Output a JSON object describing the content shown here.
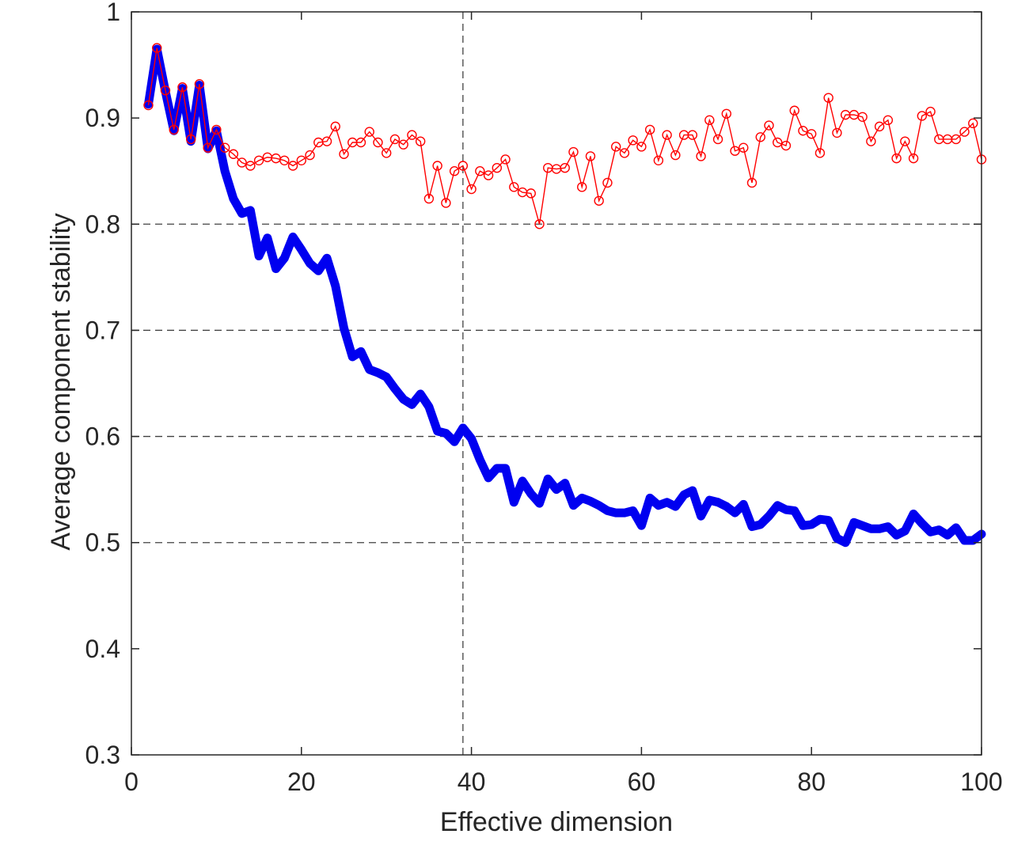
{
  "chart_data": {
    "type": "line",
    "xlabel": "Effective dimension",
    "ylabel": "Average component stability",
    "xlim": [
      0,
      100
    ],
    "ylim": [
      0.3,
      1.0
    ],
    "x_ticks": [
      "0",
      "20",
      "40",
      "60",
      "80",
      "100"
    ],
    "y_ticks": [
      "0.3",
      "0.4",
      "0.5",
      "0.6",
      "0.7",
      "0.8",
      "0.9",
      "1"
    ],
    "reference_lines": {
      "x": 39,
      "y": [
        0.5,
        0.6,
        0.7,
        0.8
      ]
    },
    "colors": {
      "blue_series": "#0000f0",
      "red_series": "#ff0000",
      "axis": "#262626",
      "grid": "#404040"
    },
    "x": [
      2,
      3,
      4,
      5,
      6,
      7,
      8,
      9,
      10,
      11,
      12,
      13,
      14,
      15,
      16,
      17,
      18,
      19,
      20,
      21,
      22,
      23,
      24,
      25,
      26,
      27,
      28,
      29,
      30,
      31,
      32,
      33,
      34,
      35,
      36,
      37,
      38,
      39,
      40,
      41,
      42,
      43,
      44,
      45,
      46,
      47,
      48,
      49,
      50,
      51,
      52,
      53,
      54,
      55,
      56,
      57,
      58,
      59,
      60,
      61,
      62,
      63,
      64,
      65,
      66,
      67,
      68,
      69,
      70,
      71,
      72,
      73,
      74,
      75,
      76,
      77,
      78,
      79,
      80,
      81,
      82,
      83,
      84,
      85,
      86,
      87,
      88,
      89,
      90,
      91,
      92,
      93,
      94,
      95,
      96,
      97,
      98,
      99,
      100
    ],
    "series": [
      {
        "color": "#0000f0",
        "values": [
          0.913,
          0.965,
          0.925,
          0.888,
          0.928,
          0.878,
          0.931,
          0.871,
          0.888,
          0.85,
          0.824,
          0.81,
          0.813,
          0.77,
          0.787,
          0.758,
          0.768,
          0.788,
          0.776,
          0.763,
          0.756,
          0.768,
          0.742,
          0.702,
          0.675,
          0.68,
          0.663,
          0.66,
          0.656,
          0.645,
          0.635,
          0.63,
          0.64,
          0.628,
          0.605,
          0.603,
          0.595,
          0.608,
          0.598,
          0.578,
          0.561,
          0.57,
          0.57,
          0.538,
          0.558,
          0.546,
          0.537,
          0.56,
          0.55,
          0.556,
          0.535,
          0.542,
          0.539,
          0.535,
          0.53,
          0.528,
          0.528,
          0.53,
          0.516,
          0.542,
          0.535,
          0.538,
          0.534,
          0.545,
          0.549,
          0.525,
          0.54,
          0.538,
          0.534,
          0.528,
          0.536,
          0.515,
          0.517,
          0.525,
          0.535,
          0.531,
          0.53,
          0.516,
          0.517,
          0.522,
          0.521,
          0.504,
          0.5,
          0.519,
          0.516,
          0.513,
          0.513,
          0.515,
          0.507,
          0.511,
          0.527,
          0.518,
          0.51,
          0.512,
          0.507,
          0.514,
          0.502,
          0.502,
          0.508
        ]
      },
      {
        "color": "#ff0000",
        "values": [
          0.912,
          0.966,
          0.926,
          0.889,
          0.929,
          0.88,
          0.932,
          0.872,
          0.889,
          0.872,
          0.866,
          0.858,
          0.855,
          0.86,
          0.863,
          0.862,
          0.86,
          0.855,
          0.86,
          0.865,
          0.877,
          0.878,
          0.892,
          0.866,
          0.877,
          0.877,
          0.887,
          0.877,
          0.867,
          0.88,
          0.875,
          0.884,
          0.878,
          0.824,
          0.855,
          0.82,
          0.85,
          0.855,
          0.833,
          0.85,
          0.846,
          0.853,
          0.861,
          0.835,
          0.83,
          0.829,
          0.8,
          0.853,
          0.852,
          0.853,
          0.868,
          0.835,
          0.864,
          0.822,
          0.839,
          0.873,
          0.867,
          0.879,
          0.873,
          0.889,
          0.86,
          0.884,
          0.865,
          0.884,
          0.884,
          0.864,
          0.898,
          0.88,
          0.904,
          0.869,
          0.872,
          0.839,
          0.882,
          0.893,
          0.877,
          0.874,
          0.907,
          0.888,
          0.885,
          0.867,
          0.919,
          0.886,
          0.903,
          0.903,
          0.901,
          0.878,
          0.892,
          0.898,
          0.862,
          0.878,
          0.862,
          0.902,
          0.906,
          0.88,
          0.88,
          0.88,
          0.887,
          0.895,
          0.861
        ]
      }
    ]
  }
}
